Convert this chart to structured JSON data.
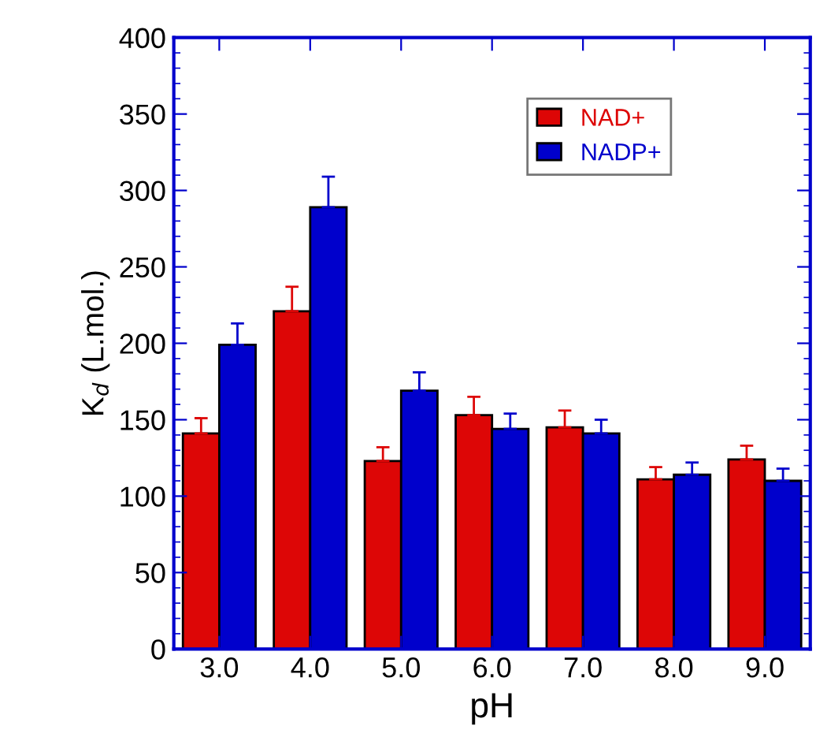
{
  "chart_data": {
    "type": "bar",
    "xlabel": "pH",
    "ylabel": "K$_{d}$ (L.mol.)",
    "categories": [
      "3.0",
      "4.0",
      "5.0",
      "6.0",
      "7.0",
      "8.0",
      "9.0"
    ],
    "series": [
      {
        "name": "NAD+",
        "color": "#dd0606",
        "values": [
          141,
          221,
          123,
          153,
          145,
          111,
          124
        ],
        "errors": [
          [
            141,
            151
          ],
          [
            221,
            237
          ],
          [
            123,
            132
          ],
          [
            153,
            165
          ],
          [
            145,
            156
          ],
          [
            111,
            119
          ],
          [
            124,
            133
          ]
        ]
      },
      {
        "name": "NADP+",
        "color": "#0000cc",
        "values": [
          199,
          289,
          169,
          144,
          141,
          114,
          110
        ],
        "errors": [
          [
            199,
            213
          ],
          [
            289,
            309
          ],
          [
            169,
            181
          ],
          [
            144,
            154
          ],
          [
            141,
            150
          ],
          [
            114,
            122
          ],
          [
            110,
            118
          ]
        ]
      }
    ],
    "ylim": [
      0,
      400
    ],
    "yticks": [
      0,
      50,
      100,
      150,
      200,
      250,
      300,
      350,
      400
    ],
    "grid": false,
    "legend": "top right"
  }
}
